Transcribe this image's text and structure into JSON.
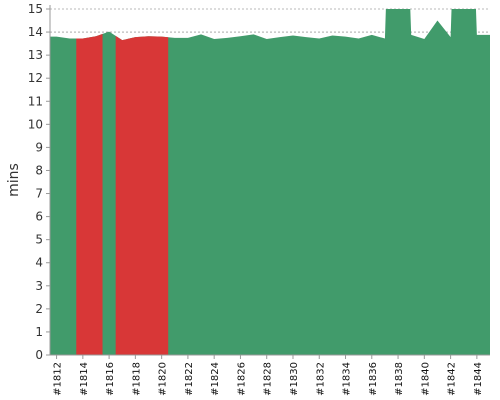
{
  "chart_data": {
    "type": "area",
    "ylabel": "mins",
    "xlabel": "",
    "ylim": [
      0,
      15
    ],
    "yticks": [
      "0",
      "1",
      "2",
      "3",
      "4",
      "5",
      "6",
      "7",
      "8",
      "9",
      "10",
      "11",
      "12",
      "13",
      "14",
      "15"
    ],
    "grid": "horizontal-dashed",
    "x_tick_labels": [
      "#1812",
      "#1814",
      "#1816",
      "#1818",
      "#1820",
      "#1822",
      "#1824",
      "#1826",
      "#1828",
      "#1830",
      "#1832",
      "#1834",
      "#1836",
      "#1838",
      "#1840",
      "#1842",
      "#1844"
    ],
    "x_tick_values": [
      1812,
      1814,
      1816,
      1818,
      1820,
      1822,
      1824,
      1826,
      1828,
      1830,
      1832,
      1834,
      1836,
      1838,
      1840,
      1842,
      1844
    ],
    "x": [
      1812,
      1813,
      1814,
      1815,
      1816,
      1817,
      1818,
      1819,
      1820,
      1821,
      1822,
      1823,
      1824,
      1825,
      1826,
      1827,
      1828,
      1829,
      1830,
      1831,
      1832,
      1833,
      1834,
      1835,
      1836,
      1837,
      1837.1,
      1838,
      1838.9,
      1839,
      1840,
      1841,
      1842,
      1842.1,
      1843,
      1843.9,
      1844,
      1845
    ],
    "values": [
      13.8,
      13.72,
      13.72,
      13.82,
      14.02,
      13.65,
      13.78,
      13.82,
      13.8,
      13.75,
      13.75,
      13.9,
      13.7,
      13.75,
      13.82,
      13.9,
      13.7,
      13.78,
      13.85,
      13.78,
      13.72,
      13.85,
      13.8,
      13.72,
      13.88,
      13.72,
      15.5,
      15.5,
      15.5,
      13.88,
      13.7,
      14.5,
      13.78,
      15.5,
      15.5,
      15.5,
      13.88,
      13.88
    ],
    "status_colors": {
      "success": "#419b6b",
      "failure": "#d83737"
    },
    "failed_ranges": [
      [
        1813.5,
        1815.5
      ],
      [
        1816.5,
        1820.5
      ]
    ]
  }
}
